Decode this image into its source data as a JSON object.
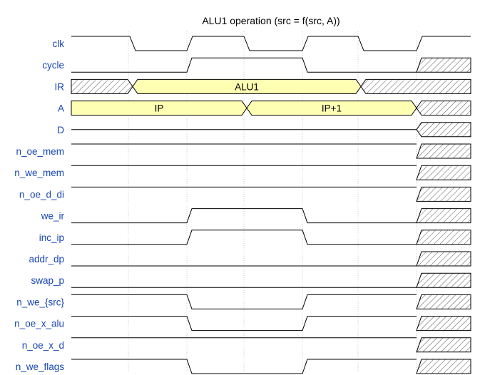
{
  "title": "ALU1 operation (src = f(src, A))",
  "signals": [
    {
      "name": "clk"
    },
    {
      "name": "cycle"
    },
    {
      "name": "IR",
      "segments": [
        {
          "kind": "x"
        },
        {
          "kind": "data",
          "label": "ALU1"
        },
        {
          "kind": "x"
        }
      ]
    },
    {
      "name": "A",
      "segments": [
        {
          "kind": "data",
          "label": "IP"
        },
        {
          "kind": "data",
          "label": "IP+1"
        },
        {
          "kind": "x"
        }
      ]
    },
    {
      "name": "D"
    },
    {
      "name": "n_oe_mem"
    },
    {
      "name": "n_we_mem"
    },
    {
      "name": "n_oe_d_di"
    },
    {
      "name": "we_ir"
    },
    {
      "name": "inc_ip"
    },
    {
      "name": "addr_dp"
    },
    {
      "name": "swap_p"
    },
    {
      "name": "n_we_{src}"
    },
    {
      "name": "n_oe_x_alu"
    },
    {
      "name": "n_oe_x_d"
    },
    {
      "name": "n_we_flags"
    }
  ]
}
